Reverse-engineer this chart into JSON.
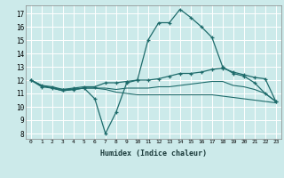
{
  "background_color": "#cceaea",
  "grid_color": "#ffffff",
  "line_color": "#1e6b6b",
  "x_label": "Humidex (Indice chaleur)",
  "x_ticks": [
    0,
    1,
    2,
    3,
    4,
    5,
    6,
    7,
    8,
    9,
    10,
    11,
    12,
    13,
    14,
    15,
    16,
    17,
    18,
    19,
    20,
    21,
    22,
    23
  ],
  "y_ticks": [
    8,
    9,
    10,
    11,
    12,
    13,
    14,
    15,
    16,
    17
  ],
  "ylim": [
    7.6,
    17.6
  ],
  "xlim": [
    -0.5,
    23.5
  ],
  "curve1_y": [
    12.0,
    11.5,
    11.4,
    11.3,
    11.3,
    11.4,
    10.6,
    8.0,
    9.6,
    11.8,
    12.0,
    15.0,
    16.3,
    16.3,
    17.3,
    16.7,
    16.0,
    15.2,
    13.0,
    12.5,
    12.3,
    11.8,
    11.0,
    10.4
  ],
  "curve2_y": [
    12.0,
    11.6,
    11.5,
    11.3,
    11.4,
    11.5,
    11.5,
    11.8,
    11.8,
    11.9,
    12.0,
    12.0,
    12.1,
    12.3,
    12.5,
    12.5,
    12.6,
    12.8,
    12.9,
    12.6,
    12.4,
    12.2,
    12.1,
    10.4
  ],
  "curve3_y": [
    12.0,
    11.6,
    11.4,
    11.2,
    11.3,
    11.4,
    11.4,
    11.4,
    11.3,
    11.4,
    11.4,
    11.4,
    11.5,
    11.5,
    11.6,
    11.7,
    11.8,
    11.9,
    11.9,
    11.6,
    11.5,
    11.3,
    11.0,
    10.4
  ],
  "curve4_y": [
    12.0,
    11.6,
    11.4,
    11.2,
    11.3,
    11.4,
    11.4,
    11.3,
    11.1,
    11.0,
    10.9,
    10.9,
    10.9,
    10.9,
    10.9,
    10.9,
    10.9,
    10.9,
    10.8,
    10.7,
    10.6,
    10.5,
    10.4,
    10.3
  ]
}
